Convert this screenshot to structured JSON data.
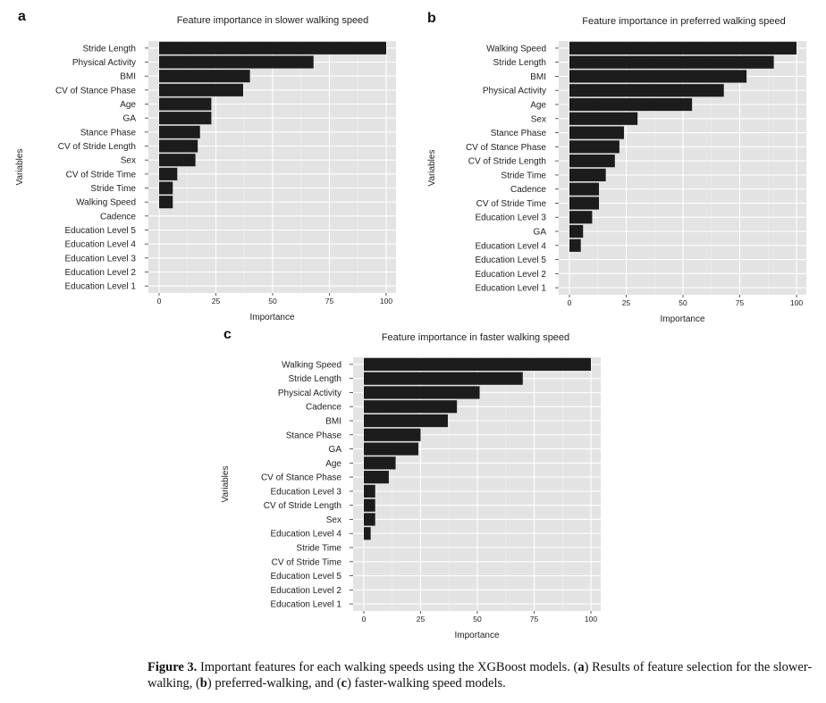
{
  "chart_data": [
    {
      "panel_label": "a",
      "type": "bar",
      "orientation": "horizontal",
      "title": "Feature importance in slower walking speed",
      "xlabel": "Importance",
      "ylabel": "Variables",
      "xlim": [
        0,
        100
      ],
      "xticks": [
        "0",
        "25",
        "50",
        "75",
        "100"
      ],
      "grid": true,
      "categories": [
        "Stride Length",
        "Physical Activity",
        "BMI",
        "CV of Stance Phase",
        "Age",
        "GA",
        "Stance Phase",
        "CV of Stride Length",
        "Sex",
        "CV of Stride Time",
        "Stride Time",
        "Walking Speed",
        "Cadence",
        "Education Level 5",
        "Education Level 4",
        "Education Level 3",
        "Education Level 2",
        "Education Level 1"
      ],
      "values": [
        100,
        68,
        40,
        37,
        23,
        23,
        18,
        17,
        16,
        8,
        6,
        6,
        0,
        0,
        0,
        0,
        0,
        0
      ]
    },
    {
      "panel_label": "b",
      "type": "bar",
      "orientation": "horizontal",
      "title": "Feature importance in preferred walking speed",
      "xlabel": "Importance",
      "ylabel": "Variables",
      "xlim": [
        0,
        100
      ],
      "xticks": [
        "0",
        "25",
        "50",
        "75",
        "100"
      ],
      "grid": true,
      "categories": [
        "Walking Speed",
        "Stride Length",
        "BMI",
        "Physical Activity",
        "Age",
        "Sex",
        "Stance Phase",
        "CV of Stance Phase",
        "CV of Stride Length",
        "Stride Time",
        "Cadence",
        "CV of Stride Time",
        "Education Level 3",
        "GA",
        "Education Level 4",
        "Education Level 5",
        "Education Level 2",
        "Education Level 1"
      ],
      "values": [
        100,
        90,
        78,
        68,
        54,
        30,
        24,
        22,
        20,
        16,
        13,
        13,
        10,
        6,
        5,
        0,
        0,
        0
      ]
    },
    {
      "panel_label": "c",
      "type": "bar",
      "orientation": "horizontal",
      "title": "Feature importance in faster walking speed",
      "xlabel": "Importance",
      "ylabel": "Variables",
      "xlim": [
        0,
        100
      ],
      "xticks": [
        "0",
        "25",
        "50",
        "75",
        "100"
      ],
      "grid": true,
      "categories": [
        "Walking Speed",
        "Stride Length",
        "Physical Activity",
        "Cadence",
        "BMI",
        "Stance Phase",
        "GA",
        "Age",
        "CV of Stance Phase",
        "Education Level 3",
        "CV of Stride Length",
        "Sex",
        "Education Level 4",
        "Stride Time",
        "CV of Stride Time",
        "Education Level 5",
        "Education Level 2",
        "Education Level 1"
      ],
      "values": [
        100,
        70,
        51,
        41,
        37,
        25,
        24,
        14,
        11,
        5,
        5,
        5,
        3,
        0,
        0,
        0,
        0,
        0
      ]
    }
  ],
  "caption": {
    "label": "Figure 3.",
    "text_1": " Important features for each walking speeds using the XGBoost models. (",
    "a": "a",
    "text_2": ") Results of feature selection for the slower-walking, (",
    "b": "b",
    "text_3": ") preferred-walking, and (",
    "c": "c",
    "text_4": ") faster-walking speed models."
  },
  "colors": {
    "panel_bg": "#e3e3e3",
    "grid_major": "#ffffff",
    "grid_minor": "#efefef",
    "bar": "#1c1c1c",
    "text": "#222222",
    "tick": "#333333"
  }
}
